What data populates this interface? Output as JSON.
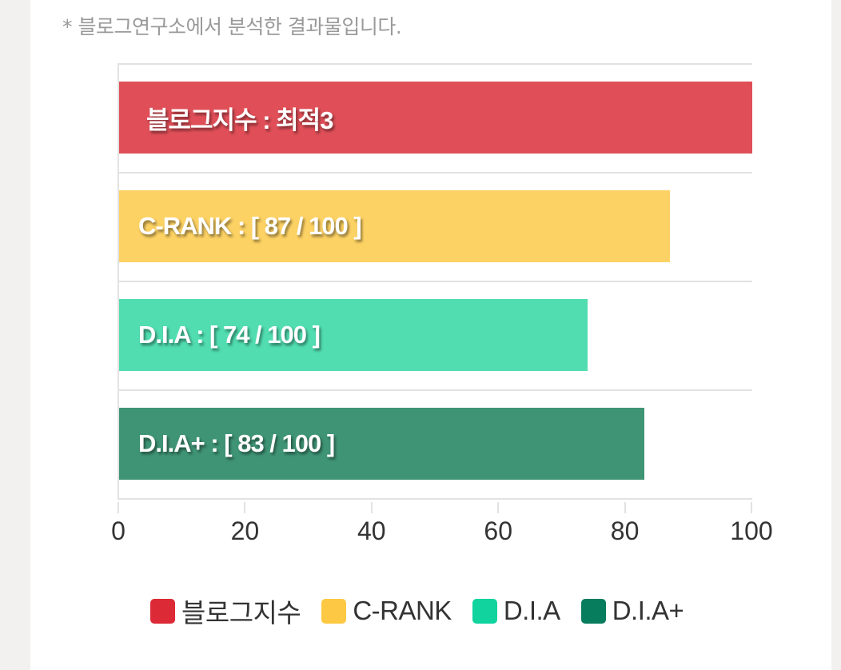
{
  "note": "* 블로그연구소에서 분석한 결과물입니다.",
  "chart_data": {
    "type": "bar",
    "orientation": "horizontal",
    "categories": [
      "블로그지수",
      "C-RANK",
      "D.I.A",
      "D.I.A+"
    ],
    "values": [
      100,
      87,
      74,
      83
    ],
    "bar_labels": [
      "블로그지수 : 최적3",
      "C-RANK : [ 87 / 100 ]",
      "D.I.A : [ 74 / 100 ]",
      "D.I.A+ : [ 83 / 100 ]"
    ],
    "colors": [
      "#e04f58",
      "#fdd264",
      "#51ddb0",
      "#3f9476"
    ],
    "xlim": [
      0,
      100
    ],
    "x_ticks": [
      "0",
      "20",
      "40",
      "60",
      "80",
      "100"
    ],
    "grid": true,
    "legend": {
      "position": "bottom",
      "entries": [
        {
          "label": "블로그지수",
          "color": "#dc2a36"
        },
        {
          "label": "C-RANK",
          "color": "#fdc843"
        },
        {
          "label": "D.I.A",
          "color": "#10d39e"
        },
        {
          "label": "D.I.A+",
          "color": "#087d5e"
        }
      ]
    }
  }
}
